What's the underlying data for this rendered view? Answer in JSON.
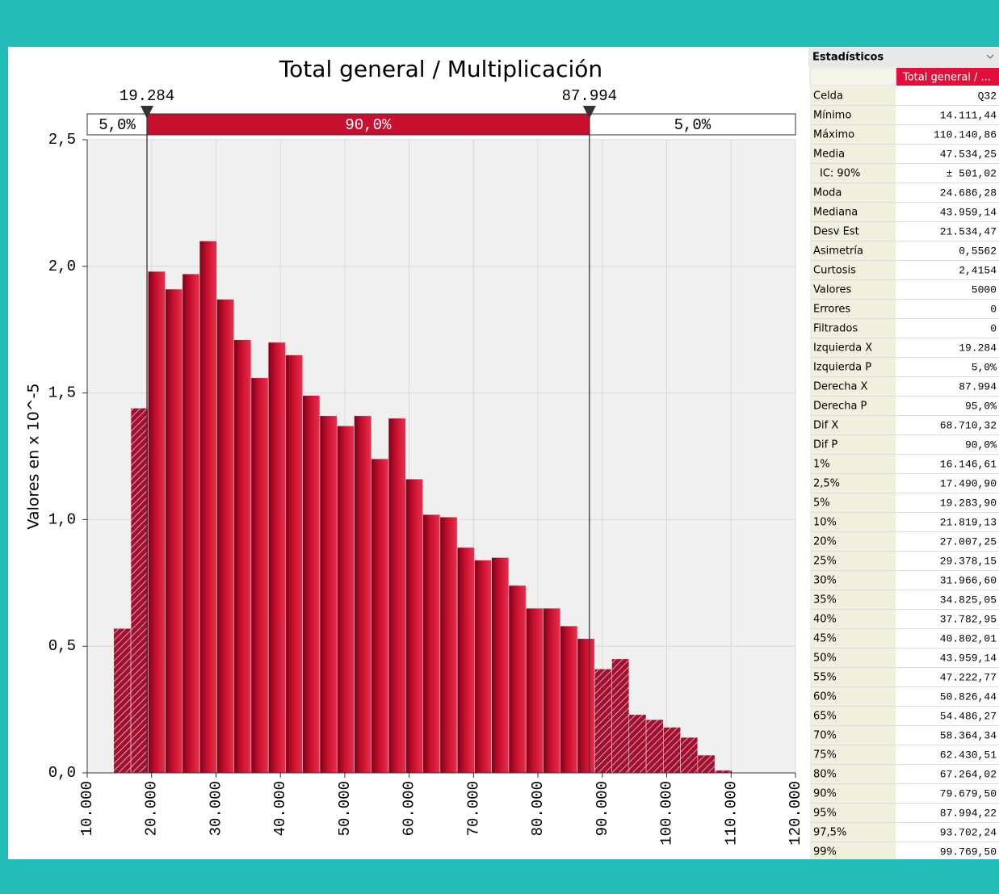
{
  "chart_data": {
    "type": "histogram",
    "title": "Total general / Multiplicación",
    "y_label": "Valores en x 10^-5",
    "bins": [
      14111,
      16779,
      19446,
      22114,
      24781,
      27449,
      30116,
      32784,
      35451,
      38119,
      40786,
      43454,
      46121,
      48789,
      51456,
      54123,
      56791,
      59458,
      62126,
      64793,
      67461,
      70128,
      72796,
      75463,
      78131,
      80798,
      83466,
      86133,
      88801,
      91468,
      94136,
      96803,
      99470,
      102138,
      104805,
      107473,
      110141
    ],
    "values": [
      0.57,
      1.44,
      1.98,
      1.91,
      1.97,
      2.1,
      1.87,
      1.71,
      1.56,
      1.7,
      1.65,
      1.49,
      1.41,
      1.37,
      1.41,
      1.24,
      1.4,
      1.16,
      1.02,
      1.01,
      0.89,
      0.84,
      0.85,
      0.74,
      0.65,
      0.65,
      0.58,
      0.53,
      0.41,
      0.45,
      0.23,
      0.21,
      0.18,
      0.14,
      0.07,
      0.01
    ],
    "color": "#c8102e",
    "xlim": [
      10000,
      120000
    ],
    "xticks": [
      {
        "value": 10000,
        "label": "10.000"
      },
      {
        "value": 20000,
        "label": "20.000"
      },
      {
        "value": 30000,
        "label": "30.000"
      },
      {
        "value": 40000,
        "label": "40.000"
      },
      {
        "value": 50000,
        "label": "50.000"
      },
      {
        "value": 60000,
        "label": "60.000"
      },
      {
        "value": 70000,
        "label": "70.000"
      },
      {
        "value": 80000,
        "label": "80.000"
      },
      {
        "value": 90000,
        "label": "90.000"
      },
      {
        "value": 100000,
        "label": "100.000"
      },
      {
        "value": 110000,
        "label": "110.000"
      },
      {
        "value": 120000,
        "label": "120.000"
      }
    ],
    "ylim": [
      0,
      2.5
    ],
    "yticks": [
      {
        "value": 0,
        "label": "0,0"
      },
      {
        "value": 0.5,
        "label": "0,5"
      },
      {
        "value": 1,
        "label": "1,0"
      },
      {
        "value": 1.5,
        "label": "1,5"
      },
      {
        "value": 2,
        "label": "2,0"
      },
      {
        "value": 2.5,
        "label": "2,5"
      }
    ],
    "grid": true,
    "delimiters": {
      "left": {
        "value": 19284,
        "label": "19.284"
      },
      "right": {
        "value": 87994,
        "label": "87.994"
      },
      "left_p": {
        "value": 5,
        "label": "5,0%"
      },
      "middle_p": {
        "value": 90,
        "label": "90,0%"
      },
      "right_p": {
        "value": 5,
        "label": "5,0%"
      }
    }
  },
  "stats": {
    "title": "Estadísticos",
    "column": "Total general / ...",
    "rows": [
      [
        "Celda",
        "Q32"
      ],
      [
        "Mínimo",
        "14.111,44"
      ],
      [
        "Máximo",
        "110.140,86"
      ],
      [
        "Media",
        "47.534,25"
      ],
      [
        "IC: 90%",
        "± 501,02"
      ],
      [
        "Moda",
        "24.686,28"
      ],
      [
        "Mediana",
        "43.959,14"
      ],
      [
        "Desv Est",
        "21.534,47"
      ],
      [
        "Asimetría",
        "0,5562"
      ],
      [
        "Curtosis",
        "2,4154"
      ],
      [
        "Valores",
        "5000"
      ],
      [
        "Errores",
        "0"
      ],
      [
        "Filtrados",
        "0"
      ],
      [
        "Izquierda X",
        "19.284"
      ],
      [
        "Izquierda P",
        "5,0%"
      ],
      [
        "Derecha X",
        "87.994"
      ],
      [
        "Derecha P",
        "95,0%"
      ],
      [
        "Dif X",
        "68.710,32"
      ],
      [
        "Dif P",
        "90,0%"
      ],
      [
        "1%",
        "16.146,61"
      ],
      [
        "2,5%",
        "17.490,90"
      ],
      [
        "5%",
        "19.283,90"
      ],
      [
        "10%",
        "21.819,13"
      ],
      [
        "20%",
        "27.007,25"
      ],
      [
        "25%",
        "29.378,15"
      ],
      [
        "30%",
        "31.966,60"
      ],
      [
        "35%",
        "34.825,05"
      ],
      [
        "40%",
        "37.782,95"
      ],
      [
        "45%",
        "40.802,01"
      ],
      [
        "50%",
        "43.959,14"
      ],
      [
        "55%",
        "47.222,77"
      ],
      [
        "60%",
        "50.826,44"
      ],
      [
        "65%",
        "54.486,27"
      ],
      [
        "70%",
        "58.364,34"
      ],
      [
        "75%",
        "62.430,51"
      ],
      [
        "80%",
        "67.264,02"
      ],
      [
        "90%",
        "79.679,50"
      ],
      [
        "95%",
        "87.994,22"
      ],
      [
        "97,5%",
        "93.702,24"
      ],
      [
        "99%",
        "99.769,50"
      ]
    ]
  }
}
